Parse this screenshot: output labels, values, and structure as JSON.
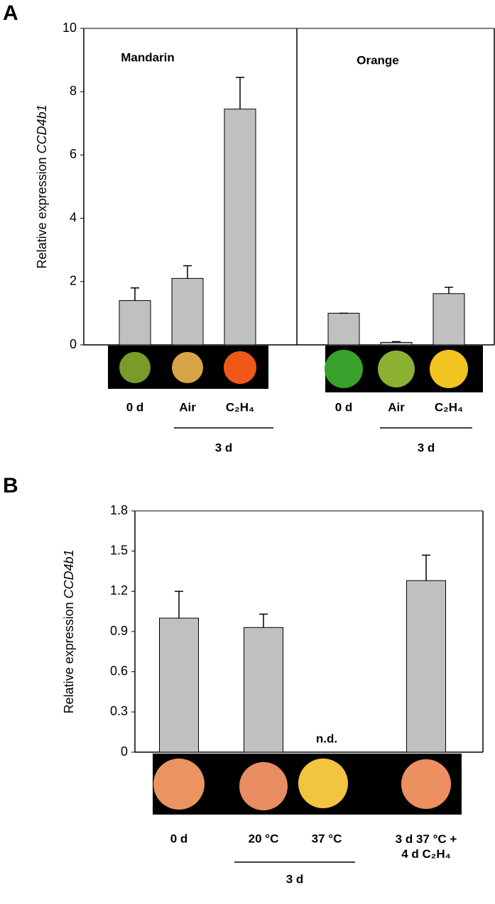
{
  "chart_data": [
    {
      "type": "bar",
      "panel": "A",
      "ylabel": "Relative expression",
      "ylabel_gene": "CCD4b1",
      "ylim": [
        0,
        10
      ],
      "yticks": [
        0,
        2,
        4,
        6,
        8,
        10
      ],
      "color": "#c0c0c0",
      "groups": [
        {
          "name": "Mandarin",
          "categories": [
            "0 d",
            "Air",
            "C₂H₄"
          ],
          "values": [
            1.4,
            2.1,
            7.45
          ],
          "errors": [
            0.4,
            0.4,
            1.0
          ],
          "period": "3 d"
        },
        {
          "name": "Orange",
          "categories": [
            "0 d",
            "Air",
            "C₂H₄"
          ],
          "values": [
            1.0,
            0.08,
            1.62
          ],
          "errors": [
            0,
            0.02,
            0.2
          ],
          "period": "3 d"
        }
      ]
    },
    {
      "type": "bar",
      "panel": "B",
      "ylabel": "Relative expression",
      "ylabel_gene": "CCD4b1",
      "ylim": [
        0,
        1.8
      ],
      "yticks": [
        0,
        0.3,
        0.6,
        0.9,
        1.2,
        1.5,
        1.8
      ],
      "color": "#c0c0c0",
      "categories": [
        "0 d",
        "20 °C",
        "37 °C",
        "3 d 37 °C + 4 d C₂H₄"
      ],
      "values": [
        1.0,
        0.93,
        null,
        1.28
      ],
      "errors": [
        0.2,
        0.1,
        null,
        0.19
      ],
      "value_labels": [
        null,
        null,
        "n.d.",
        null
      ],
      "period": "3 d"
    }
  ]
}
